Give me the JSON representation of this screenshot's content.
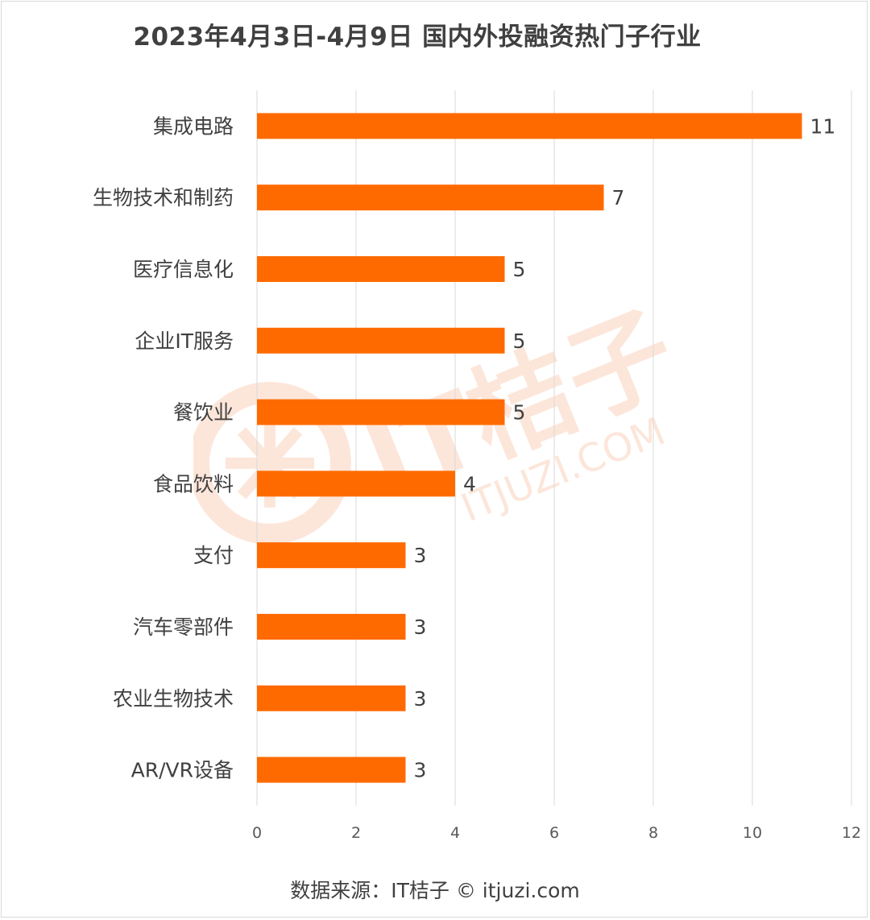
{
  "title": "2023年4月3日-4月9日 国内外投融资热门子行业",
  "source": "数据来源：IT桔子 © itjuzi.com",
  "watermark": {
    "brand": "IT桔子",
    "domain": "ITJUZI.COM"
  },
  "colors": {
    "bar": "#ff6a00",
    "grid": "#d9d9d9",
    "text": "#404040",
    "watermark": "#fde3d4"
  },
  "chart_data": {
    "type": "bar",
    "orientation": "horizontal",
    "title": "2023年4月3日-4月9日 国内外投融资热门子行业",
    "categories": [
      "集成电路",
      "生物技术和制药",
      "医疗信息化",
      "企业IT服务",
      "餐饮业",
      "食品饮料",
      "支付",
      "汽车零部件",
      "农业生物技术",
      "AR/VR设备"
    ],
    "values": [
      11,
      7,
      5,
      5,
      5,
      4,
      3,
      3,
      3,
      3
    ],
    "xlim": [
      0,
      12
    ],
    "xticks": [
      0,
      2,
      4,
      6,
      8,
      10,
      12
    ],
    "grid": true,
    "data_labels": true,
    "legend": "none",
    "xlabel": "",
    "ylabel": ""
  }
}
